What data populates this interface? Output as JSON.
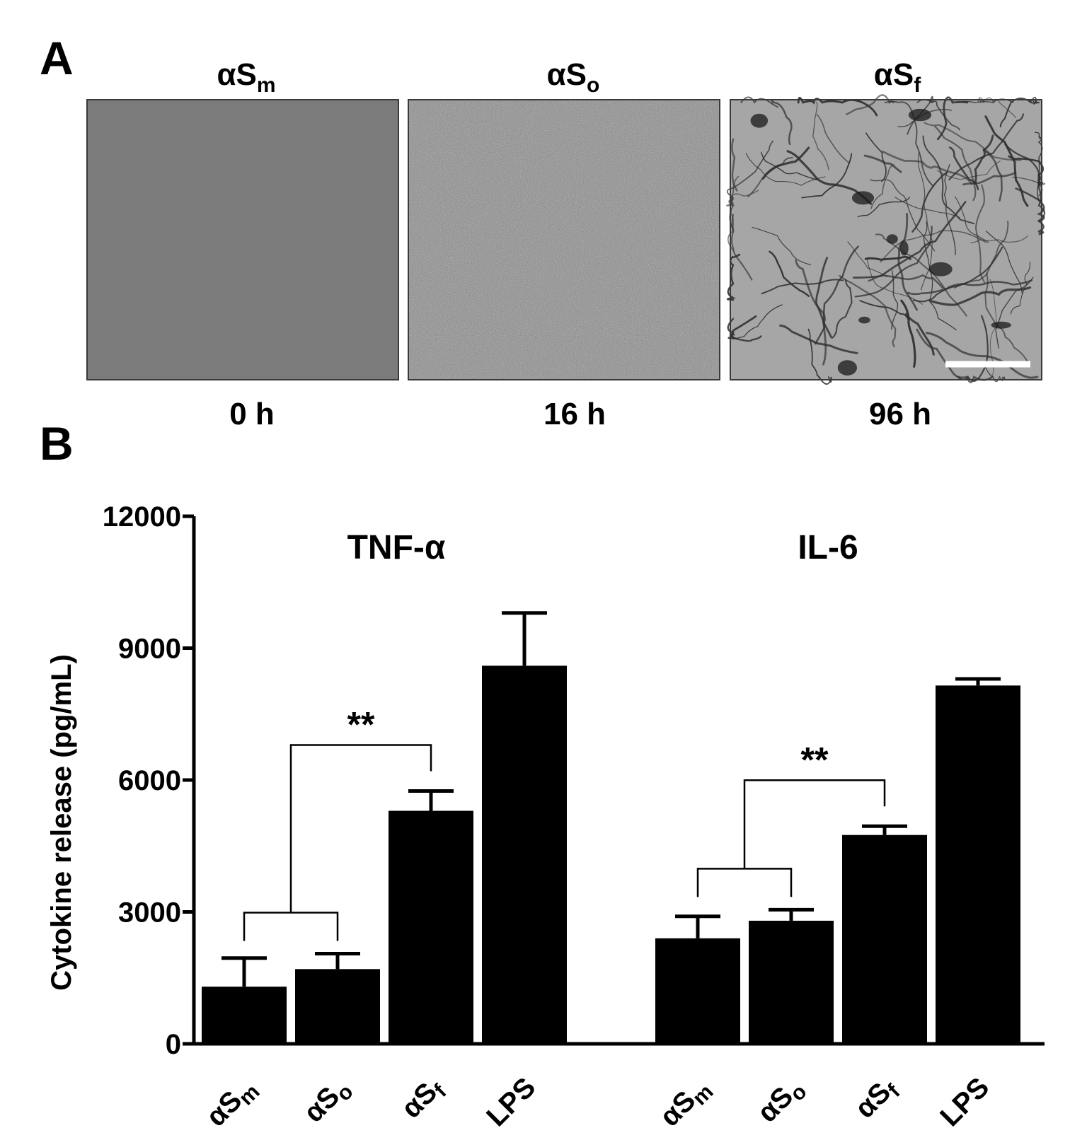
{
  "panel_a": {
    "letter": "A",
    "images": [
      {
        "label_main": "αS",
        "label_sub": "m",
        "time": "0 h",
        "texture": "smooth"
      },
      {
        "label_main": "αS",
        "label_sub": "o",
        "time": "16 h",
        "texture": "grainy"
      },
      {
        "label_main": "αS",
        "label_sub": "f",
        "time": "96 h",
        "texture": "fibrils"
      }
    ]
  },
  "panel_b": {
    "letter": "B"
  },
  "chart_data": {
    "type": "bar",
    "ylabel": "Cytokine release (pg/mL)",
    "ylim": [
      0,
      12000
    ],
    "yticks": [
      0,
      3000,
      6000,
      9000,
      12000
    ],
    "bar_color": "#000000",
    "groups": [
      {
        "name": "TNF-α",
        "categories": [
          {
            "main": "αS",
            "sub": "m"
          },
          {
            "main": "αS",
            "sub": "o"
          },
          {
            "main": "αS",
            "sub": "f"
          },
          {
            "main": "LPS",
            "sub": ""
          }
        ],
        "values": [
          1300,
          1700,
          5300,
          8600
        ],
        "errors": [
          650,
          350,
          450,
          1200
        ],
        "significance": {
          "label": "**",
          "from": [
            0,
            1
          ],
          "to": 2
        }
      },
      {
        "name": "IL-6",
        "categories": [
          {
            "main": "αS",
            "sub": "m"
          },
          {
            "main": "αS",
            "sub": "o"
          },
          {
            "main": "αS",
            "sub": "f"
          },
          {
            "main": "LPS",
            "sub": ""
          }
        ],
        "values": [
          2400,
          2800,
          4750,
          8150
        ],
        "errors": [
          500,
          250,
          200,
          150
        ],
        "significance": {
          "label": "**",
          "from": [
            0,
            1
          ],
          "to": 2
        }
      }
    ]
  }
}
